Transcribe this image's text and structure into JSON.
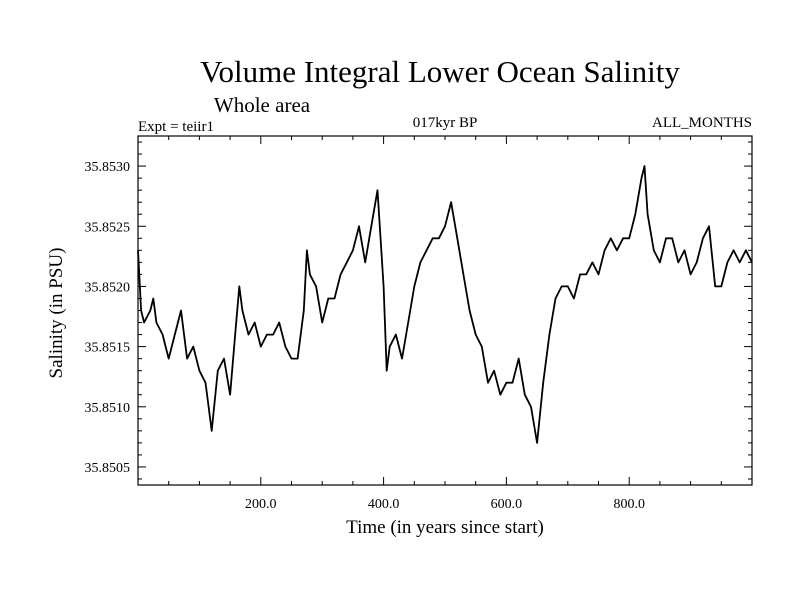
{
  "chart_data": {
    "type": "line",
    "title": "Volume Integral Lower Ocean Salinity",
    "subtitle": "Whole area",
    "experiment": "Expt = teiir1",
    "period": "017kyr BP",
    "months": "ALL_MONTHS",
    "xlabel": "Time (in years since start)",
    "ylabel": "Salinity (in PSU)",
    "xlim": [
      0,
      1000
    ],
    "ylim": [
      35.85035,
      35.85325
    ],
    "xticks": [
      {
        "value": 200,
        "label": "200.0"
      },
      {
        "value": 400,
        "label": "400.0"
      },
      {
        "value": 600,
        "label": "600.0"
      },
      {
        "value": 800,
        "label": "800.0"
      }
    ],
    "yticks": [
      {
        "value": 35.8505,
        "label": "35.8505"
      },
      {
        "value": 35.851,
        "label": "35.8510"
      },
      {
        "value": 35.8515,
        "label": "35.8515"
      },
      {
        "value": 35.852,
        "label": "35.8520"
      },
      {
        "value": 35.8525,
        "label": "35.8525"
      },
      {
        "value": 35.853,
        "label": "35.8530"
      }
    ],
    "grid": false,
    "series": [
      {
        "color": "#000000",
        "x": [
          0,
          5,
          10,
          20,
          25,
          30,
          40,
          45,
          50,
          60,
          70,
          80,
          90,
          100,
          110,
          115,
          120,
          130,
          140,
          150,
          160,
          165,
          170,
          180,
          190,
          200,
          210,
          220,
          230,
          240,
          250,
          260,
          270,
          275,
          280,
          290,
          300,
          310,
          320,
          330,
          340,
          350,
          360,
          370,
          380,
          390,
          400,
          405,
          410,
          420,
          430,
          440,
          450,
          460,
          470,
          480,
          490,
          500,
          510,
          520,
          530,
          540,
          550,
          560,
          570,
          580,
          590,
          600,
          610,
          620,
          630,
          640,
          650,
          660,
          670,
          680,
          690,
          700,
          710,
          720,
          730,
          740,
          750,
          760,
          770,
          780,
          790,
          800,
          810,
          820,
          825,
          830,
          840,
          850,
          860,
          870,
          880,
          890,
          900,
          910,
          920,
          930,
          940,
          950,
          960,
          970,
          980,
          990,
          1000
        ],
        "y": [
          35.8523,
          35.8518,
          35.8517,
          35.8518,
          35.8519,
          35.8517,
          35.8516,
          35.8515,
          35.8514,
          35.8516,
          35.8518,
          35.8514,
          35.8515,
          35.8513,
          35.8512,
          35.851,
          35.8508,
          35.8513,
          35.8514,
          35.8511,
          35.8517,
          35.852,
          35.8518,
          35.8516,
          35.8517,
          35.8515,
          35.8516,
          35.8516,
          35.8517,
          35.8515,
          35.8514,
          35.8514,
          35.8518,
          35.8523,
          35.8521,
          35.852,
          35.8517,
          35.8519,
          35.8519,
          35.8521,
          35.8522,
          35.8523,
          35.8525,
          35.8522,
          35.8525,
          35.8528,
          35.852,
          35.8513,
          35.8515,
          35.8516,
          35.8514,
          35.8517,
          35.852,
          35.8522,
          35.8523,
          35.8524,
          35.8524,
          35.8525,
          35.8527,
          35.8524,
          35.8521,
          35.8518,
          35.8516,
          35.8515,
          35.8512,
          35.8513,
          35.8511,
          35.8512,
          35.8512,
          35.8514,
          35.8511,
          35.851,
          35.8507,
          35.8512,
          35.8516,
          35.8519,
          35.852,
          35.852,
          35.8519,
          35.8521,
          35.8521,
          35.8522,
          35.8521,
          35.8523,
          35.8524,
          35.8523,
          35.8524,
          35.8524,
          35.8526,
          35.8529,
          35.853,
          35.8526,
          35.8523,
          35.8522,
          35.8524,
          35.8524,
          35.8522,
          35.8523,
          35.8521,
          35.8522,
          35.8524,
          35.8525,
          35.852,
          35.852,
          35.8522,
          35.8523,
          35.8522,
          35.8523,
          35.8522
        ]
      }
    ]
  }
}
